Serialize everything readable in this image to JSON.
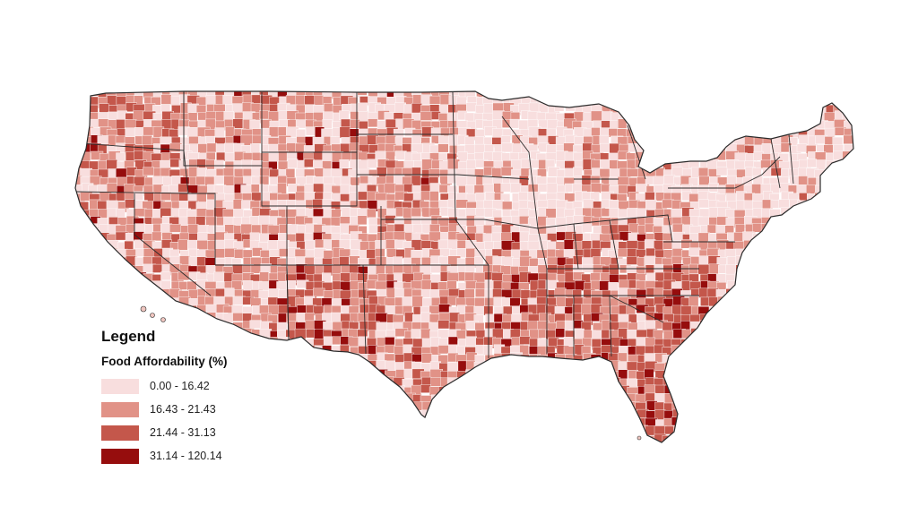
{
  "map": {
    "subject": "US county map of food affordability",
    "state_border_color": "#2b2b2b",
    "county_border_color": "#ffffff",
    "classes": [
      {
        "range": "0.00 - 16.42",
        "color": "#f8dede"
      },
      {
        "range": "16.43 - 21.43",
        "color": "#e19287"
      },
      {
        "range": "21.44 - 31.13",
        "color": "#c4574b"
      },
      {
        "range": "31.14 - 120.14",
        "color": "#960d0d"
      }
    ]
  },
  "legend": {
    "title": "Legend",
    "subtitle": "Food Affordability (%)"
  }
}
